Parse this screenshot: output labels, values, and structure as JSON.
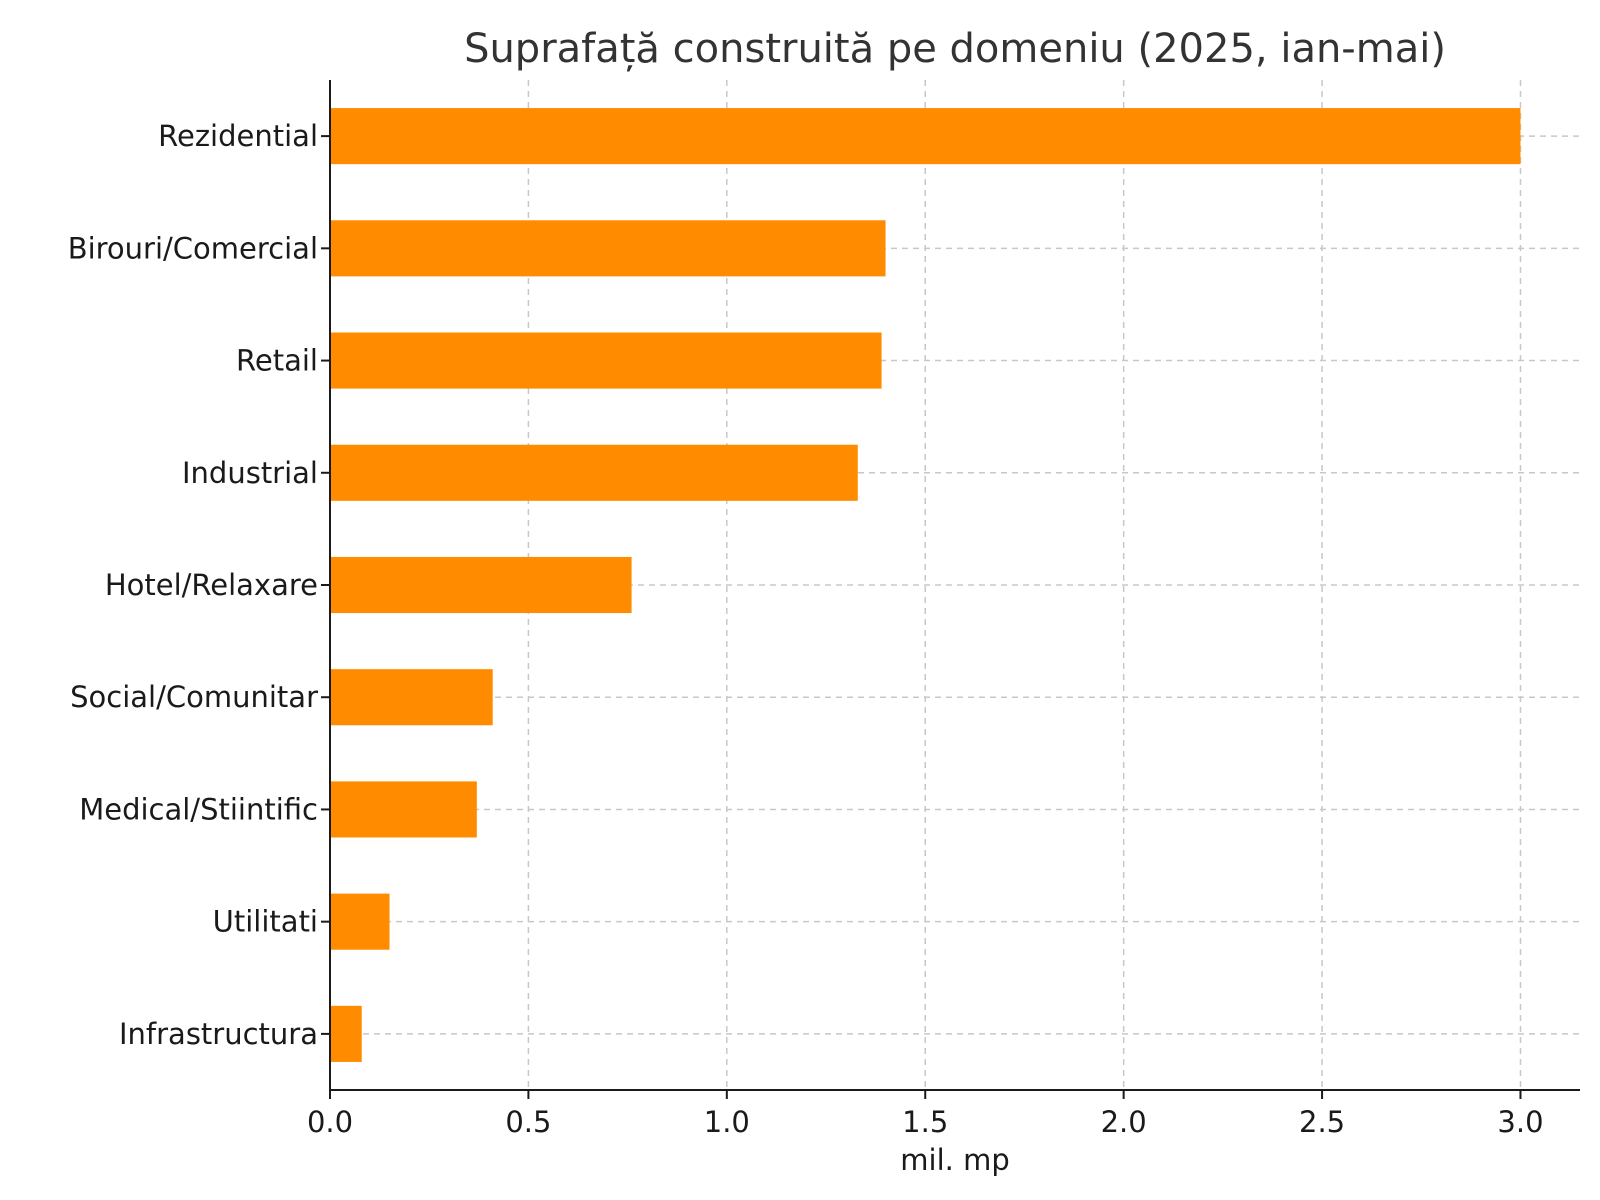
{
  "chart_data": {
    "type": "bar",
    "orientation": "horizontal",
    "title": "Suprafață construită pe domeniu (2025, ian-mai)",
    "xlabel": "mil. mp",
    "ylabel": "",
    "categories": [
      "Rezidential",
      "Birouri/Comercial",
      "Retail",
      "Industrial",
      "Hotel/Relaxare",
      "Social/Comunitar",
      "Medical/Stiintific",
      "Utilitati",
      "Infrastructura"
    ],
    "values": [
      3.0,
      1.4,
      1.39,
      1.33,
      0.76,
      0.41,
      0.37,
      0.15,
      0.08
    ],
    "xlim": [
      0,
      3.15
    ],
    "xticks": [
      "0.0",
      "0.5",
      "1.0",
      "1.5",
      "2.0",
      "2.5",
      "3.0"
    ],
    "grid": true,
    "bar_color": "#ff8c00"
  }
}
